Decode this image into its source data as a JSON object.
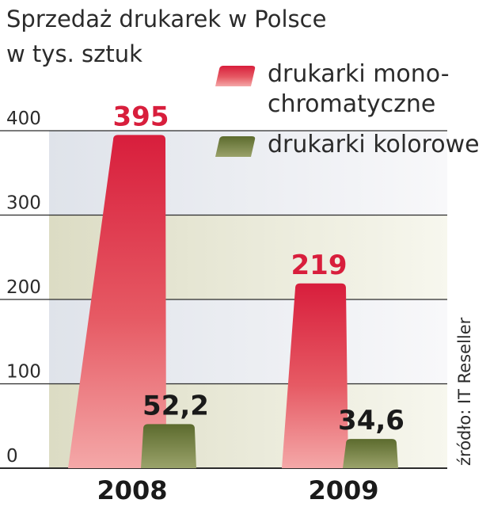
{
  "chart_data": {
    "type": "bar",
    "title": "Sprzedaż drukarek w Polsce",
    "subtitle": "w tys. sztuk",
    "categories": [
      "2008",
      "2009"
    ],
    "series": [
      {
        "name": "drukarki mono-\nchromatyczne",
        "name_lines": [
          "drukarki mono-",
          "chromatyczne"
        ],
        "values": [
          395,
          219
        ],
        "value_labels": [
          "395",
          "219"
        ],
        "color": "#d81e3c",
        "label_color": "#d81e3c"
      },
      {
        "name": "drukarki kolorowe",
        "name_lines": [
          "drukarki kolorowe"
        ],
        "values": [
          52.2,
          34.6
        ],
        "value_labels": [
          "52,2",
          "34,6"
        ],
        "color": "#5c6b2e",
        "label_color": "#1a1a1a"
      }
    ],
    "yticks": [
      "0",
      "100",
      "200",
      "300",
      "400"
    ],
    "ylim": [
      0,
      400
    ],
    "grid": true,
    "legend_position": "top-right",
    "source": "źródło: IT Reseller"
  }
}
